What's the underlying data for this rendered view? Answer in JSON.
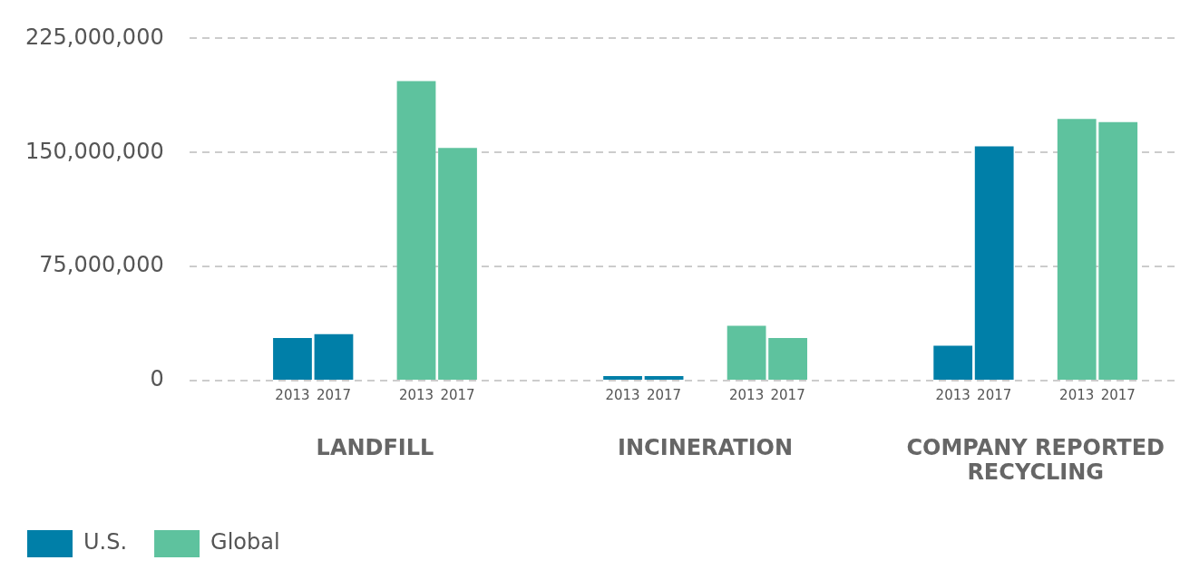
{
  "chart_data": {
    "type": "bar",
    "categories": [
      null,
      null,
      "2013",
      "2017",
      null,
      "2013",
      "2017",
      null,
      null,
      null,
      "2013",
      "2017",
      null,
      "2013",
      "2017",
      null,
      null,
      null,
      "2013",
      "2017",
      null,
      "2013",
      "2017",
      null
    ],
    "series": [
      {
        "name": "U.S.",
        "color": "#007fa8",
        "values": [
          null,
          null,
          28000000,
          30500000,
          null,
          null,
          null,
          null,
          null,
          null,
          3000000,
          3000000,
          null,
          null,
          null,
          null,
          null,
          null,
          23000000,
          154000000,
          null,
          null,
          null,
          null
        ]
      },
      {
        "name": "Global",
        "color": "#5ec29e",
        "values": [
          null,
          null,
          null,
          null,
          null,
          197000000,
          153000000,
          null,
          null,
          null,
          null,
          null,
          null,
          36000000,
          28000000,
          null,
          null,
          null,
          null,
          null,
          null,
          172000000,
          170000000,
          null
        ]
      }
    ],
    "ylim": [
      0,
      225000000
    ],
    "yticks": [
      {
        "value": 0,
        "label": "0"
      },
      {
        "value": 75000000,
        "label": "75,000,000"
      },
      {
        "value": 150000000,
        "label": "150,000,000"
      },
      {
        "value": 225000000,
        "label": "225,000,000"
      }
    ],
    "grid": "y",
    "legend": "bottom left",
    "annotations": [
      "LANDFILL",
      "INCINERATION",
      "COMPANY REPORTED RECYCLING"
    ]
  }
}
